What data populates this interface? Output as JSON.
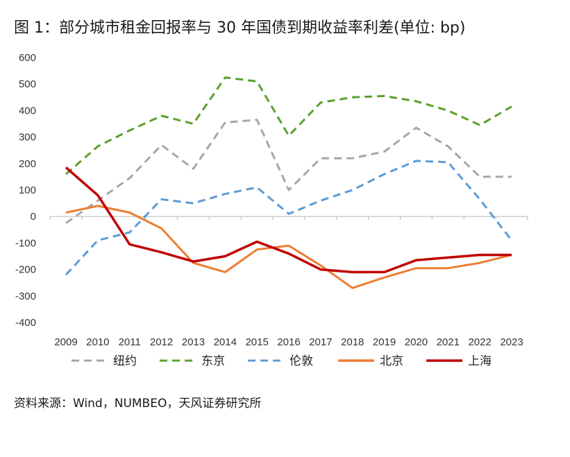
{
  "title": "图 1：部分城市租金回报率与 30 年国债到期收益率利差(单位: bp)",
  "source": "资料来源：Wind，NUMBEO，天风证券研究所",
  "chart_data": {
    "type": "line",
    "categories": [
      "2009",
      "2010",
      "2011",
      "2012",
      "2013",
      "2014",
      "2015",
      "2016",
      "2017",
      "2018",
      "2019",
      "2020",
      "2021",
      "2022",
      "2023"
    ],
    "ylim": [
      -400,
      600
    ],
    "yticks": [
      600,
      500,
      400,
      300,
      200,
      100,
      0,
      -100,
      -200,
      -300,
      -400
    ],
    "grid": false,
    "legend_position": "bottom",
    "series": [
      {
        "name": "纽约",
        "color": "#a6a6a6",
        "dash": "dashed",
        "values": [
          -25,
          60,
          145,
          270,
          180,
          355,
          365,
          100,
          220,
          220,
          245,
          335,
          265,
          150,
          150
        ]
      },
      {
        "name": "东京",
        "color": "#5aa02c",
        "dash": "dashed",
        "values": [
          160,
          265,
          325,
          380,
          350,
          525,
          510,
          305,
          430,
          450,
          455,
          435,
          400,
          345,
          415
        ]
      },
      {
        "name": "伦敦",
        "color": "#5b9bd5",
        "dash": "dashed",
        "values": [
          -220,
          -90,
          -60,
          65,
          50,
          85,
          110,
          10,
          60,
          100,
          160,
          210,
          205,
          65,
          -90
        ]
      },
      {
        "name": "北京",
        "color": "#ed7d31",
        "dash": "solid",
        "values": [
          15,
          40,
          15,
          -45,
          -175,
          -210,
          -125,
          -110,
          -185,
          -270,
          -230,
          -195,
          -195,
          -175,
          -145
        ]
      },
      {
        "name": "上海",
        "color": "#c00000",
        "dash": "solid",
        "values": [
          185,
          80,
          -105,
          -135,
          -170,
          -150,
          -95,
          -140,
          -200,
          -210,
          -210,
          -165,
          -155,
          -145,
          -145
        ]
      }
    ]
  }
}
